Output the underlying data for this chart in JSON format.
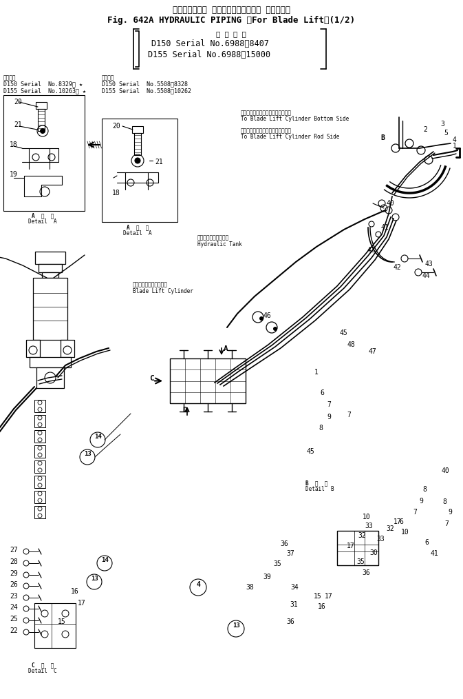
{
  "title_jp": "ハイドロリック パイピング（ブレード リフト用）",
  "title_en": "Fig. 642A HYDRAULIC PIPING 〈For Blade Lift〉(1/2)",
  "applic_jp": "適 用 号 機",
  "applic_d150": "D150 Serial No.6988～8407",
  "applic_d155": "D155 Serial No.6988～15000",
  "note1_jp": "適用号機",
  "note1_d150": "D150 Serial  No.8329～ ★",
  "note1_d155": "D155 Serial  No.10263～ ★",
  "note2_jp": "適用号機",
  "note2_d150": "D150 Serial  No.5508～8328",
  "note2_d155": "D155 Serial  No.5508～10262",
  "detail_a_label": "A 詳細\nDetail A",
  "detail_b_label": "B 詳細\nDetail B",
  "detail_c_label": "C 詳細\nDetail C",
  "blade_bottom_jp": "ブレードリフトシリンダボトム側へ",
  "blade_bottom_en": "To Blade Lift Cylinder Bottom Side",
  "blade_rod_jp": "ブレードリフトシリンダロッド側へ",
  "blade_rod_en": "To Blade Lift Cylinder Rod Side",
  "hyd_tank_jp": "ハイドロリックタンク",
  "hyd_tank_en": "Hydraulic Tank",
  "blade_cyl_jp": "ブレードリフトシリンダ",
  "blade_cyl_en": "Blade Lift Cylinder",
  "bg": "#ffffff"
}
